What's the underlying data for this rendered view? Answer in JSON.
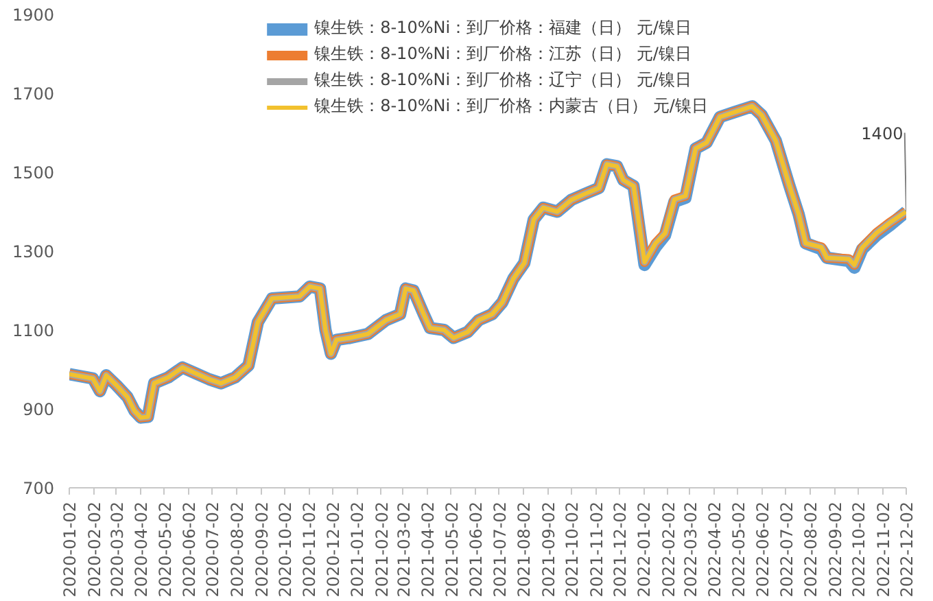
{
  "chart_data": {
    "type": "line",
    "x": [
      "2020-01-02",
      "2020-02-01",
      "2020-02-10",
      "2020-02-18",
      "2020-03-02",
      "2020-03-16",
      "2020-03-25",
      "2020-04-02",
      "2020-04-11",
      "2020-04-19",
      "2020-05-07",
      "2020-05-25",
      "2020-06-11",
      "2020-06-28",
      "2020-07-13",
      "2020-07-31",
      "2020-08-17",
      "2020-08-29",
      "2020-09-16",
      "2020-10-21",
      "2020-11-03",
      "2020-11-16",
      "2020-11-23",
      "2020-11-30",
      "2020-12-07",
      "2020-12-24",
      "2021-01-16",
      "2021-02-08",
      "2021-02-26",
      "2021-03-05",
      "2021-03-15",
      "2021-03-28",
      "2021-04-05",
      "2021-04-23",
      "2021-05-05",
      "2021-05-23",
      "2021-06-06",
      "2021-06-23",
      "2021-07-06",
      "2021-07-20",
      "2021-08-03",
      "2021-08-15",
      "2021-08-27",
      "2021-09-14",
      "2021-10-02",
      "2021-10-19",
      "2021-11-06",
      "2021-11-16",
      "2021-11-29",
      "2021-12-07",
      "2021-12-20",
      "2022-01-03",
      "2022-01-17",
      "2022-01-29",
      "2022-02-10",
      "2022-02-24",
      "2022-03-09",
      "2022-03-23",
      "2022-04-09",
      "2022-04-27",
      "2022-05-20",
      "2022-06-01",
      "2022-06-19",
      "2022-07-06",
      "2022-07-18",
      "2022-07-27",
      "2022-08-16",
      "2022-08-23",
      "2022-09-20",
      "2022-09-27",
      "2022-10-07",
      "2022-10-25",
      "2022-11-11",
      "2022-12-02"
    ],
    "series": [
      {
        "name": "镍生铁：8-10%Ni：到厂价格：福建（日） 元/镍日",
        "color": "#5b9bd5",
        "values": [
          988,
          977,
          945,
          985,
          960,
          930,
          895,
          878,
          880,
          965,
          980,
          1005,
          990,
          975,
          965,
          980,
          1010,
          1120,
          1180,
          1185,
          1210,
          1205,
          1100,
          1040,
          1075,
          1080,
          1090,
          1125,
          1140,
          1205,
          1200,
          1140,
          1105,
          1100,
          1080,
          1095,
          1125,
          1140,
          1170,
          1230,
          1270,
          1380,
          1410,
          1400,
          1430,
          1445,
          1460,
          1520,
          1515,
          1480,
          1465,
          1265,
          1310,
          1340,
          1425,
          1435,
          1560,
          1575,
          1640,
          1652,
          1667,
          1645,
          1580,
          1468,
          1394,
          1320,
          1305,
          1283,
          1275,
          1258,
          1305,
          1340,
          1365,
          1400
        ]
      },
      {
        "name": "镍生铁：8-10%Ni：到厂价格：江苏（日） 元/镍日",
        "color": "#ed7d31",
        "values": [
          988,
          977,
          945,
          985,
          960,
          930,
          895,
          878,
          880,
          965,
          980,
          1005,
          990,
          975,
          965,
          980,
          1010,
          1120,
          1180,
          1185,
          1210,
          1205,
          1100,
          1040,
          1075,
          1080,
          1090,
          1125,
          1140,
          1205,
          1200,
          1140,
          1105,
          1100,
          1080,
          1095,
          1125,
          1140,
          1170,
          1230,
          1270,
          1380,
          1410,
          1400,
          1430,
          1445,
          1460,
          1520,
          1515,
          1480,
          1465,
          1272,
          1320,
          1345,
          1431,
          1440,
          1560,
          1575,
          1640,
          1652,
          1667,
          1645,
          1580,
          1468,
          1394,
          1320,
          1310,
          1283,
          1280,
          1265,
          1309,
          1346,
          1372,
          1400
        ]
      },
      {
        "name": "镍生铁：8-10%Ni：到厂价格：辽宁（日） 元/镍日",
        "color": "#a5a5a5",
        "values": [
          988,
          977,
          945,
          985,
          960,
          930,
          895,
          878,
          880,
          965,
          980,
          1005,
          990,
          975,
          965,
          980,
          1010,
          1120,
          1180,
          1185,
          1210,
          1205,
          1100,
          1040,
          1075,
          1080,
          1090,
          1125,
          1140,
          1205,
          1200,
          1140,
          1105,
          1100,
          1080,
          1095,
          1125,
          1140,
          1170,
          1230,
          1270,
          1380,
          1410,
          1400,
          1430,
          1445,
          1460,
          1520,
          1515,
          1480,
          1465,
          1272,
          1320,
          1345,
          1431,
          1440,
          1560,
          1575,
          1640,
          1652,
          1667,
          1645,
          1580,
          1468,
          1394,
          1320,
          1310,
          1283,
          1280,
          1265,
          1309,
          1346,
          1372,
          1400
        ]
      },
      {
        "name": "镍生铁：8-10%Ni：到厂价格：内蒙古（日） 元/镍日",
        "color": "#f2c12e",
        "values": [
          988,
          977,
          945,
          985,
          960,
          930,
          895,
          878,
          880,
          965,
          980,
          1005,
          990,
          975,
          965,
          980,
          1010,
          1120,
          1180,
          1185,
          1210,
          1205,
          1100,
          1040,
          1075,
          1080,
          1090,
          1125,
          1140,
          1205,
          1200,
          1140,
          1105,
          1100,
          1080,
          1095,
          1125,
          1140,
          1170,
          1230,
          1270,
          1380,
          1410,
          1400,
          1430,
          1445,
          1460,
          1520,
          1515,
          1480,
          1465,
          1272,
          1320,
          1345,
          1431,
          1440,
          1560,
          1575,
          1640,
          1652,
          1667,
          1645,
          1580,
          1468,
          1394,
          1320,
          1310,
          1283,
          1280,
          1265,
          1309,
          1346,
          1372,
          1400
        ]
      }
    ],
    "xlim": [
      "2020-01-02",
      "2022-12-02"
    ],
    "xticks": [
      "2020-01-02",
      "2020-02-02",
      "2020-03-02",
      "2020-04-02",
      "2020-05-02",
      "2020-06-02",
      "2020-07-02",
      "2020-08-02",
      "2020-09-02",
      "2020-10-02",
      "2020-11-02",
      "2020-12-02",
      "2021-01-02",
      "2021-02-02",
      "2021-03-02",
      "2021-04-02",
      "2021-05-02",
      "2021-06-02",
      "2021-07-02",
      "2021-08-02",
      "2021-09-02",
      "2021-10-02",
      "2021-11-02",
      "2021-12-02",
      "2022-01-02",
      "2022-02-02",
      "2022-03-02",
      "2022-04-02",
      "2022-05-02",
      "2022-06-02",
      "2022-07-02",
      "2022-08-02",
      "2022-09-02",
      "2022-10-02",
      "2022-11-02",
      "2022-12-02"
    ],
    "ylim": [
      700,
      1900
    ],
    "yticks": [
      700,
      900,
      1100,
      1300,
      1500,
      1700,
      1900
    ],
    "annotations": [
      {
        "text": "1400",
        "x": "2022-12-02",
        "y": 1400
      }
    ],
    "legend": "top",
    "grid": false,
    "line_style": "solid"
  }
}
